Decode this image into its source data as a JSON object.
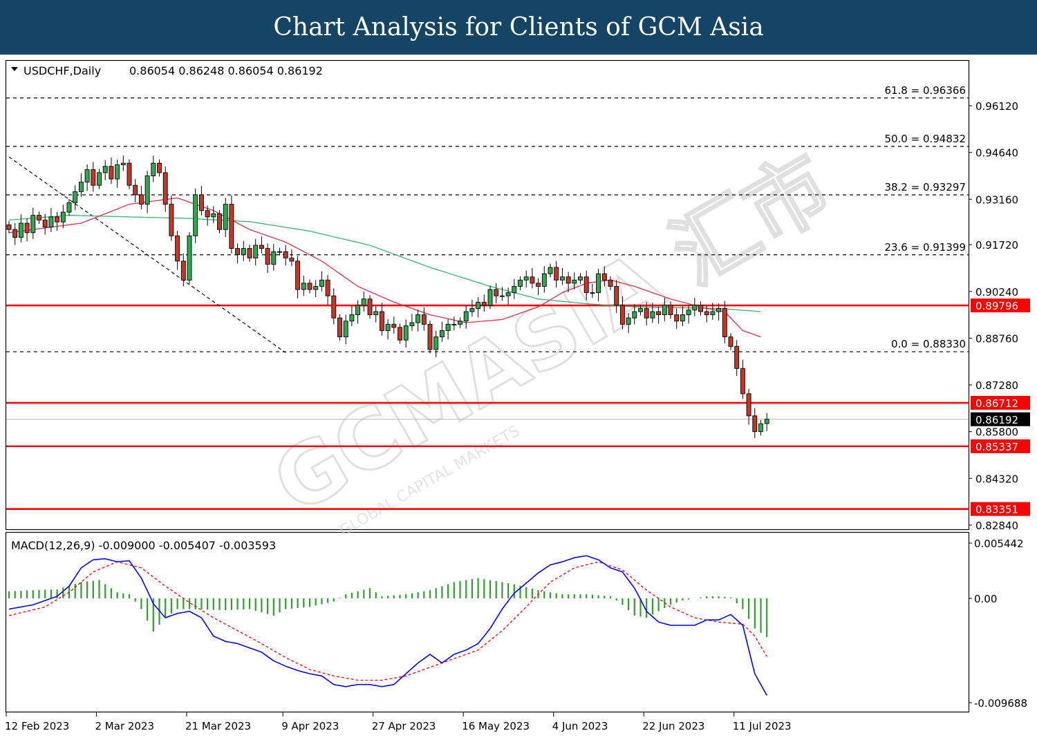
{
  "banner_title": "Chart Analysis for Clients of GCM Asia",
  "watermark": {
    "main": "GCMASIA 汇市",
    "sub": "GLOBAL CAPITAL MARKETS"
  },
  "chart_data": [
    {
      "type": "candlestick",
      "title": "USDCHF,Daily",
      "ohlc_header": "0.86054 0.86248 0.86054 0.86192",
      "ohlc_last": {
        "open": 0.86054,
        "high": 0.86248,
        "low": 0.86054,
        "close": 0.86192
      },
      "ylim": [
        0.8215,
        0.9765
      ],
      "y_ticks": [
        "0.96120",
        "0.94640",
        "0.93160",
        "0.91720",
        "0.90240",
        "0.88760",
        "0.87280",
        "0.85800",
        "0.84320",
        "0.82840"
      ],
      "x_ticks": [
        "12 Feb 2023",
        "2 Mar 2023",
        "21 Mar 2023",
        "9 Apr 2023",
        "27 Apr 2023",
        "16 May 2023",
        "4 Jun 2023",
        "22 Jun 2023",
        "11 Jul 2023"
      ],
      "current_price": "0.86192",
      "fibonacci_levels": [
        {
          "label": "61.8 = 0.96366",
          "value": 0.96366
        },
        {
          "label": "50.0 = 0.94832",
          "value": 0.94832
        },
        {
          "label": "38.2 = 0.93297",
          "value": 0.93297
        },
        {
          "label": "23.6 = 0.91399",
          "value": 0.91399
        },
        {
          "label": "0.0 = 0.88330",
          "value": 0.8833
        }
      ],
      "support_resistance": [
        {
          "label": "0.89796",
          "value": 0.89796
        },
        {
          "label": "0.86712",
          "value": 0.86712
        },
        {
          "label": "0.85337",
          "value": 0.85337
        },
        {
          "label": "0.83351",
          "value": 0.83351
        }
      ],
      "trendline": {
        "from": [
          0,
          0.945
        ],
        "to": [
          46,
          0.883
        ]
      },
      "series_close": [
        0.922,
        0.9195,
        0.924,
        0.921,
        0.9265,
        0.925,
        0.9228,
        0.926,
        0.9244,
        0.9275,
        0.9305,
        0.934,
        0.937,
        0.941,
        0.936,
        0.94,
        0.942,
        0.938,
        0.9425,
        0.943,
        0.936,
        0.933,
        0.93,
        0.939,
        0.943,
        0.94,
        0.93,
        0.92,
        0.912,
        0.906,
        0.92,
        0.933,
        0.928,
        0.926,
        0.927,
        0.922,
        0.93,
        0.916,
        0.914,
        0.916,
        0.913,
        0.917,
        0.916,
        0.911,
        0.915,
        0.915,
        0.913,
        0.912,
        0.903,
        0.905,
        0.903,
        0.904,
        0.906,
        0.901,
        0.894,
        0.888,
        0.893,
        0.895,
        0.898,
        0.9,
        0.895,
        0.896,
        0.89,
        0.892,
        0.891,
        0.887,
        0.8915,
        0.8925,
        0.895,
        0.892,
        0.884,
        0.888,
        0.89,
        0.892,
        0.892,
        0.893,
        0.896,
        0.897,
        0.899,
        0.898,
        0.903,
        0.901,
        0.901,
        0.902,
        0.904,
        0.906,
        0.907,
        0.905,
        0.904,
        0.908,
        0.91,
        0.906,
        0.907,
        0.905,
        0.906,
        0.907,
        0.902,
        0.902,
        0.908,
        0.906,
        0.904,
        0.898,
        0.892,
        0.894,
        0.896,
        0.897,
        0.894,
        0.896,
        0.895,
        0.898,
        0.895,
        0.893,
        0.895,
        0.8965,
        0.898,
        0.896,
        0.895,
        0.896,
        0.897,
        0.888,
        0.885,
        0.878,
        0.87,
        0.863,
        0.858,
        0.8605,
        0.8619
      ],
      "ma_fast": [
        [
          0,
          0.921
        ],
        [
          12,
          0.924
        ],
        [
          20,
          0.93
        ],
        [
          28,
          0.932
        ],
        [
          34,
          0.928
        ],
        [
          40,
          0.922
        ],
        [
          46,
          0.918
        ],
        [
          52,
          0.912
        ],
        [
          58,
          0.904
        ],
        [
          64,
          0.899
        ],
        [
          70,
          0.895
        ],
        [
          76,
          0.8925
        ],
        [
          82,
          0.8935
        ],
        [
          88,
          0.8975
        ],
        [
          92,
          0.902
        ],
        [
          96,
          0.905
        ],
        [
          100,
          0.906
        ],
        [
          104,
          0.904
        ],
        [
          110,
          0.9
        ],
        [
          116,
          0.897
        ],
        [
          119,
          0.896
        ],
        [
          122,
          0.89
        ],
        [
          125,
          0.888
        ]
      ],
      "ma_slow": [
        [
          0,
          0.925
        ],
        [
          10,
          0.9265
        ],
        [
          20,
          0.926
        ],
        [
          30,
          0.9255
        ],
        [
          40,
          0.9245
        ],
        [
          50,
          0.9215
        ],
        [
          60,
          0.917
        ],
        [
          70,
          0.91
        ],
        [
          80,
          0.904
        ],
        [
          88,
          0.9
        ],
        [
          96,
          0.8985
        ],
        [
          104,
          0.8975
        ],
        [
          112,
          0.8972
        ],
        [
          118,
          0.897
        ],
        [
          125,
          0.896
        ]
      ]
    },
    {
      "type": "macd",
      "label": "MACD(12,26,9) -0.009000 -0.005407 -0.003593",
      "ylim": [
        -0.0101,
        0.0059
      ],
      "y_ticks": [
        "0.005442",
        "0.00",
        "-0.009688"
      ],
      "macd": [
        [
          0,
          -0.001
        ],
        [
          4,
          -0.0006
        ],
        [
          8,
          0.0002
        ],
        [
          10,
          0.0012
        ],
        [
          12,
          0.003
        ],
        [
          14,
          0.0038
        ],
        [
          16,
          0.0039
        ],
        [
          18,
          0.0036
        ],
        [
          20,
          0.0037
        ],
        [
          22,
          0.002
        ],
        [
          24,
          -0.0005
        ],
        [
          26,
          -0.0018
        ],
        [
          28,
          -0.0014
        ],
        [
          30,
          -0.0012
        ],
        [
          32,
          -0.0018
        ],
        [
          34,
          -0.0035
        ],
        [
          36,
          -0.004
        ],
        [
          38,
          -0.0042
        ],
        [
          40,
          -0.0046
        ],
        [
          42,
          -0.005
        ],
        [
          44,
          -0.0058
        ],
        [
          46,
          -0.0063
        ],
        [
          48,
          -0.0067
        ],
        [
          50,
          -0.007
        ],
        [
          52,
          -0.0072
        ],
        [
          54,
          -0.008
        ],
        [
          56,
          -0.0082
        ],
        [
          58,
          -0.008
        ],
        [
          60,
          -0.008
        ],
        [
          62,
          -0.0082
        ],
        [
          64,
          -0.008
        ],
        [
          66,
          -0.007
        ],
        [
          68,
          -0.006
        ],
        [
          70,
          -0.0052
        ],
        [
          72,
          -0.006
        ],
        [
          74,
          -0.0052
        ],
        [
          76,
          -0.0048
        ],
        [
          78,
          -0.0042
        ],
        [
          80,
          -0.0028
        ],
        [
          82,
          -0.001
        ],
        [
          84,
          0.0005
        ],
        [
          86,
          0.0015
        ],
        [
          88,
          0.0025
        ],
        [
          90,
          0.0033
        ],
        [
          92,
          0.0036
        ],
        [
          94,
          0.004
        ],
        [
          96,
          0.0042
        ],
        [
          98,
          0.0038
        ],
        [
          100,
          0.003
        ],
        [
          102,
          0.0026
        ],
        [
          104,
          0.001
        ],
        [
          106,
          -0.0012
        ],
        [
          108,
          -0.0022
        ],
        [
          110,
          -0.0025
        ],
        [
          112,
          -0.0025
        ],
        [
          114,
          -0.0025
        ],
        [
          116,
          -0.002
        ],
        [
          118,
          -0.002
        ],
        [
          120,
          -0.0015
        ],
        [
          122,
          -0.0025
        ],
        [
          124,
          -0.007
        ],
        [
          126,
          -0.009
        ]
      ],
      "signal": [
        [
          0,
          -0.0016
        ],
        [
          6,
          -0.0008
        ],
        [
          10,
          0.0006
        ],
        [
          14,
          0.0026
        ],
        [
          18,
          0.0036
        ],
        [
          22,
          0.003
        ],
        [
          26,
          0.0012
        ],
        [
          30,
          -0.0004
        ],
        [
          34,
          -0.0018
        ],
        [
          38,
          -0.003
        ],
        [
          42,
          -0.0042
        ],
        [
          46,
          -0.0055
        ],
        [
          50,
          -0.0066
        ],
        [
          54,
          -0.0072
        ],
        [
          58,
          -0.0076
        ],
        [
          62,
          -0.0076
        ],
        [
          66,
          -0.0072
        ],
        [
          70,
          -0.0064
        ],
        [
          74,
          -0.0056
        ],
        [
          78,
          -0.0048
        ],
        [
          82,
          -0.003
        ],
        [
          86,
          -0.0008
        ],
        [
          90,
          0.0016
        ],
        [
          94,
          0.003
        ],
        [
          98,
          0.0036
        ],
        [
          102,
          0.0028
        ],
        [
          106,
          0.0008
        ],
        [
          110,
          -0.0008
        ],
        [
          114,
          -0.0018
        ],
        [
          118,
          -0.0022
        ],
        [
          122,
          -0.0024
        ],
        [
          124,
          -0.0035
        ],
        [
          126,
          -0.0054
        ]
      ],
      "histogram": [
        [
          0,
          0.0007
        ],
        [
          8,
          0.0009
        ],
        [
          12,
          0.0016
        ],
        [
          15,
          0.0018
        ],
        [
          18,
          0.0006
        ],
        [
          20,
          0.0004
        ],
        [
          22,
          -0.001
        ],
        [
          24,
          -0.0031
        ],
        [
          26,
          -0.0018
        ],
        [
          28,
          -0.001
        ],
        [
          30,
          -0.001
        ],
        [
          36,
          -0.0011
        ],
        [
          40,
          -0.001
        ],
        [
          44,
          -0.0016
        ],
        [
          46,
          -0.001
        ],
        [
          50,
          -0.0008
        ],
        [
          54,
          -0.0003
        ],
        [
          56,
          0.0004
        ],
        [
          60,
          0.001
        ],
        [
          62,
          0.0002
        ],
        [
          66,
          0.0004
        ],
        [
          70,
          0.0008
        ],
        [
          74,
          0.0016
        ],
        [
          78,
          0.002
        ],
        [
          80,
          0.0018
        ],
        [
          84,
          0.0014
        ],
        [
          88,
          0.0008
        ],
        [
          92,
          0.0004
        ],
        [
          96,
          0.0004
        ],
        [
          100,
          0.0002
        ],
        [
          102,
          -0.0006
        ],
        [
          104,
          -0.0016
        ],
        [
          106,
          -0.0018
        ],
        [
          108,
          -0.0012
        ],
        [
          110,
          -0.0006
        ],
        [
          112,
          -0.0002
        ],
        [
          114,
          0
        ],
        [
          116,
          0.0002
        ],
        [
          118,
          0.0002
        ],
        [
          120,
          0.0001
        ],
        [
          122,
          -0.001
        ],
        [
          124,
          -0.0028
        ],
        [
          126,
          -0.0036
        ]
      ]
    }
  ]
}
